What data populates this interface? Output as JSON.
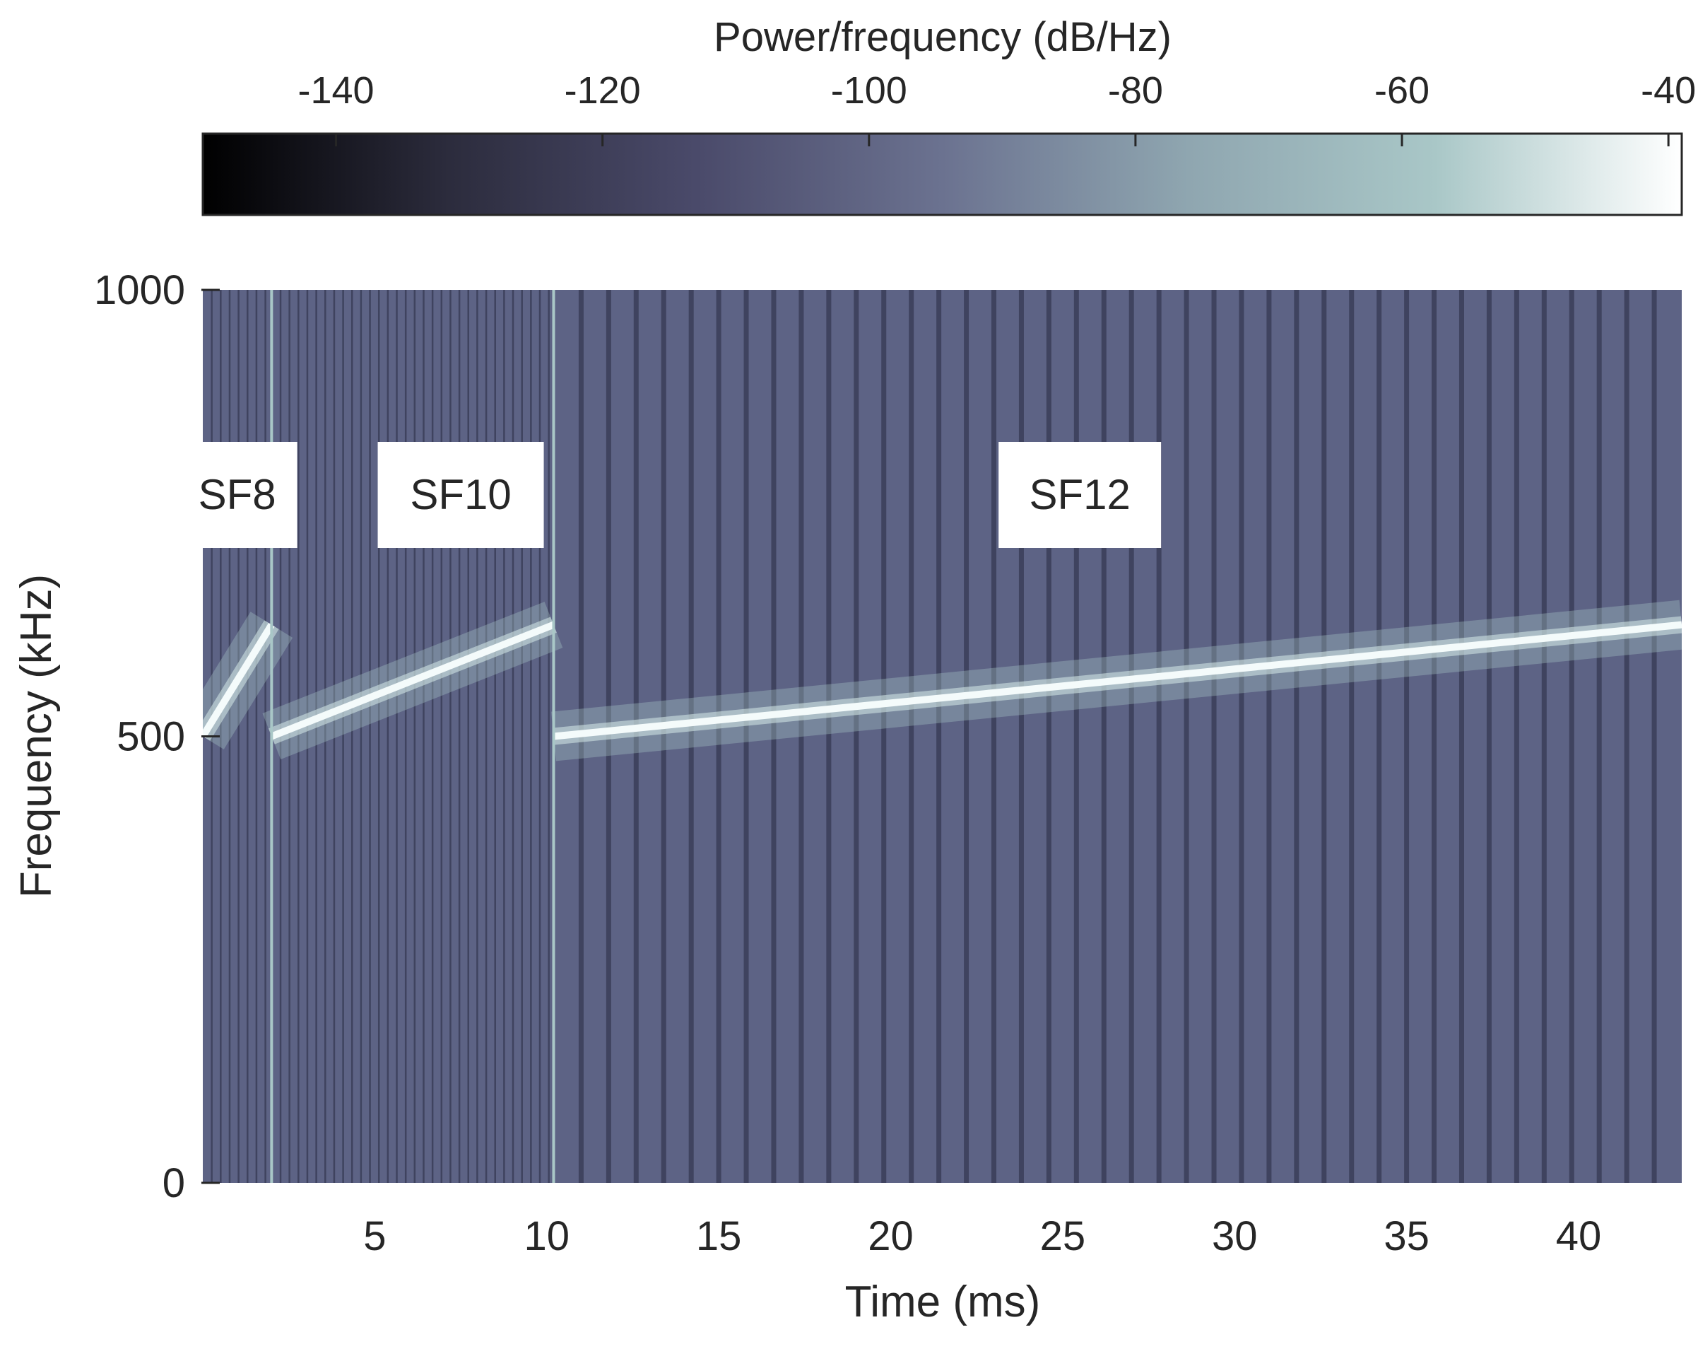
{
  "chart_data": {
    "type": "heatmap",
    "subtype": "spectrogram",
    "xlabel": "Time (ms)",
    "ylabel": "Frequency (kHz)",
    "xlim": [
      0,
      43
    ],
    "ylim": [
      0,
      1000
    ],
    "x_ticks": [
      5,
      10,
      15,
      20,
      25,
      30,
      35,
      40
    ],
    "y_ticks": [
      0,
      500,
      1000
    ],
    "colorbar": {
      "label": "Power/frequency (dB/Hz)",
      "range": [
        -150,
        -39
      ],
      "ticks": [
        -140,
        -120,
        -100,
        -80,
        -60,
        -40
      ],
      "location": "top",
      "colormap": [
        "#000000",
        "#2c2c3d",
        "#4a4a6a",
        "#6b7290",
        "#8fa6b0",
        "#a9c7c7",
        "#ffffff"
      ]
    },
    "background_color": "#5d6385",
    "chirp_color": "#f4fbfb",
    "segments": [
      {
        "label": "SF8",
        "t_start": 0,
        "t_end": 2.0,
        "f_start": 500,
        "f_end": 625,
        "symbol_period_ms": 0.26
      },
      {
        "label": "SF10",
        "t_start": 2.0,
        "t_end": 10.2,
        "f_start": 500,
        "f_end": 625,
        "symbol_period_ms": 0.26
      },
      {
        "label": "SF12",
        "t_start": 10.2,
        "t_end": 43,
        "f_start": 500,
        "f_end": 625,
        "symbol_period_ms": 0.8
      }
    ]
  }
}
